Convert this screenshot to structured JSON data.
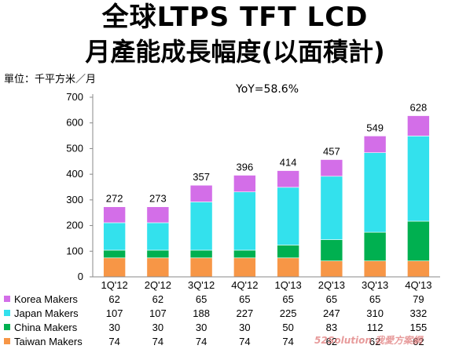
{
  "title_line1": "全球LTPS TFT LCD",
  "title_line2": "月產能成長幅度(以面積計)",
  "unit_label": "單位：千平方米／月",
  "annotation": "YoY=58.6%",
  "watermark": "52Solution 我愛方案網",
  "chart_data": {
    "type": "bar",
    "stacked": true,
    "categories": [
      "1Q'12",
      "2Q'12",
      "3Q'12",
      "4Q'12",
      "1Q'13",
      "2Q'13",
      "3Q'13",
      "4Q'13"
    ],
    "series": [
      {
        "name": "Taiwan Makers",
        "color": "#f79646",
        "values": [
          74,
          74,
          74,
          74,
          74,
          62,
          62,
          62
        ]
      },
      {
        "name": "China Makers",
        "color": "#00b050",
        "values": [
          30,
          30,
          30,
          30,
          50,
          83,
          112,
          155
        ]
      },
      {
        "name": "Japan Makers",
        "color": "#33e1ed",
        "values": [
          107,
          107,
          188,
          227,
          225,
          247,
          310,
          332
        ]
      },
      {
        "name": "Korea Makers",
        "color": "#d36ee8",
        "values": [
          62,
          62,
          65,
          65,
          65,
          65,
          65,
          79
        ]
      }
    ],
    "totals": [
      272,
      273,
      357,
      396,
      414,
      457,
      549,
      628
    ],
    "y_ticks": [
      "0",
      "100",
      "200",
      "300",
      "400",
      "500",
      "600",
      "700"
    ],
    "ylim": [
      0,
      700
    ],
    "grid": false,
    "legend": "data-table-below"
  }
}
